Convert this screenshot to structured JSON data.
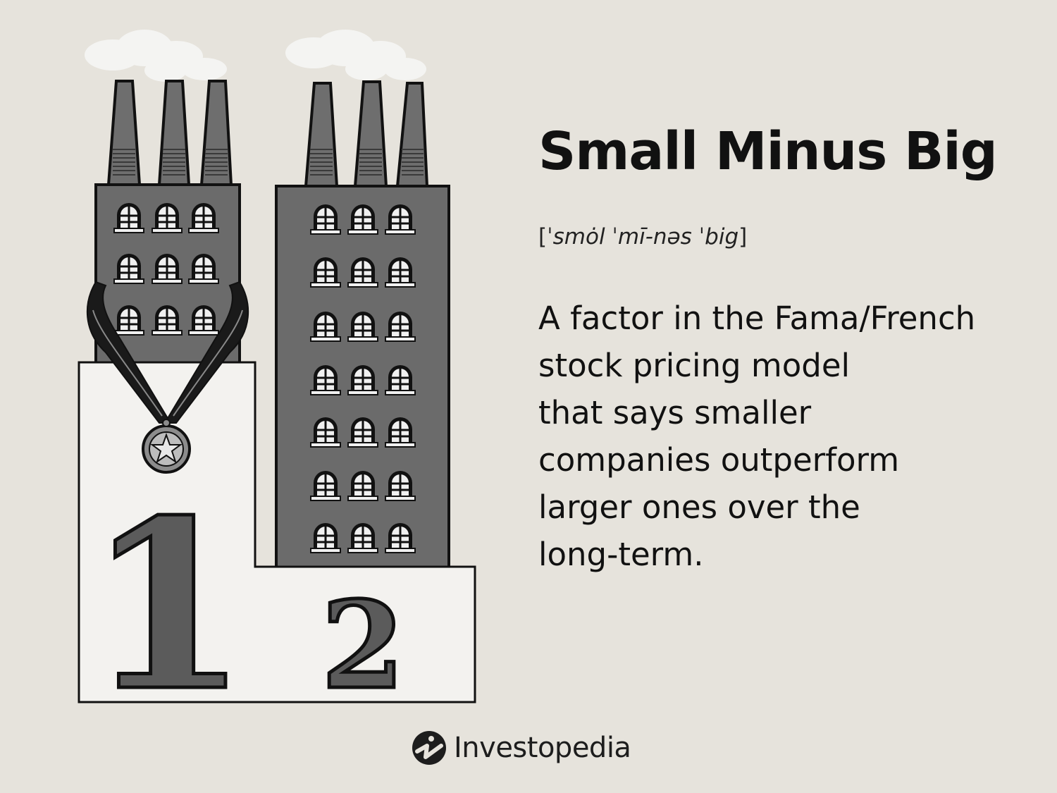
{
  "header": {
    "title": "Small Minus Big",
    "pronunciation_open": "[",
    "pronunciation_text": "ˈsmȯl ˈmī-nəs ˈbig",
    "pronunciation_close": "]"
  },
  "definition": {
    "lines": [
      "A factor in the Fama/French",
      "stock pricing model",
      "that says smaller",
      "companies outperform",
      "larger ones over the",
      "long-term."
    ]
  },
  "podium": {
    "first_place_label": "1",
    "second_place_label": "2"
  },
  "brand": {
    "name": "Investopedia",
    "logo_icon": "investopedia-logo-icon"
  },
  "colors": {
    "background": "#e6e3dc",
    "building": "#6b6b6b",
    "podium": "#f3f2ef",
    "ink": "#111111"
  }
}
